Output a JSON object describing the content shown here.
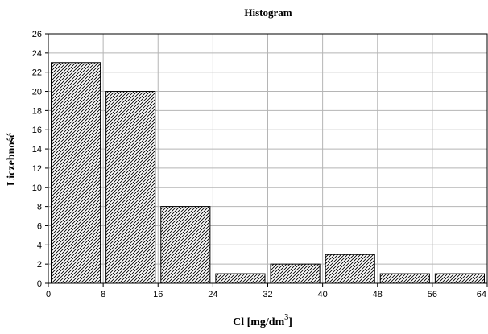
{
  "chart_data": {
    "type": "bar",
    "title": "Histogram",
    "xlabel": "Cl [mg/dm",
    "xlabel_sup": "3",
    "xlabel_tail": "]",
    "ylabel": "Liczebność",
    "bins": [
      {
        "from": 0,
        "to": 8,
        "value": 23
      },
      {
        "from": 8,
        "to": 16,
        "value": 20
      },
      {
        "from": 16,
        "to": 24,
        "value": 8
      },
      {
        "from": 24,
        "to": 32,
        "value": 1
      },
      {
        "from": 32,
        "to": 40,
        "value": 2
      },
      {
        "from": 40,
        "to": 48,
        "value": 3
      },
      {
        "from": 48,
        "to": 56,
        "value": 1
      },
      {
        "from": 56,
        "to": 64,
        "value": 1
      }
    ],
    "xlim": [
      0,
      64
    ],
    "ylim": [
      0,
      26
    ],
    "xticks": [
      "0",
      "8",
      "16",
      "24",
      "32",
      "40",
      "48",
      "56",
      "64"
    ],
    "yticks": [
      "0",
      "2",
      "4",
      "6",
      "8",
      "10",
      "12",
      "14",
      "16",
      "18",
      "20",
      "22",
      "24",
      "26"
    ],
    "grid": true,
    "bar_fill": "hatched",
    "bar_color": "#000000"
  }
}
